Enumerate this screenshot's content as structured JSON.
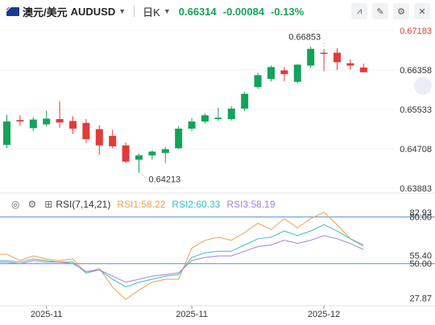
{
  "header": {
    "symbol": "澳元/美元",
    "code": "AUDUSD",
    "period": "日K",
    "price": "0.66314",
    "change": "-0.00084",
    "change_pct": "-0.13%",
    "tools": [
      "chart-type-icon",
      "draw-icon",
      "settings-icon",
      "close-icon"
    ]
  },
  "indicator": {
    "title": "RSI(7,14,21)",
    "rsi1_label": "RSI1:58.22",
    "rsi2_label": "RSI2:60.33",
    "rsi3_label": "RSI3:58.19"
  },
  "colors": {
    "up": "#13a35b",
    "down": "#e23a3a",
    "rsi1": "#f0a050",
    "rsi2": "#3bbfc0",
    "rsi3": "#a382d8",
    "ref": "#4a90d9"
  },
  "chart_data": [
    {
      "type": "candlestick",
      "ylim": [
        0.63883,
        0.67183
      ],
      "yticks": [
        "0.67183",
        "0.66358",
        "0.65533",
        "0.64708",
        "0.63883"
      ],
      "top_tick_highlight": "0.67183",
      "annotations": [
        {
          "text": "0.66853",
          "value": 0.66853,
          "index": 24
        },
        {
          "text": "0.64213",
          "value": 0.64213,
          "index": 10
        }
      ],
      "candles": [
        {
          "o": 0.6479,
          "h": 0.6542,
          "l": 0.6472,
          "c": 0.6528
        },
        {
          "o": 0.6531,
          "h": 0.6541,
          "l": 0.6519,
          "c": 0.6528
        },
        {
          "o": 0.6514,
          "h": 0.6537,
          "l": 0.6508,
          "c": 0.6532
        },
        {
          "o": 0.6522,
          "h": 0.6551,
          "l": 0.6518,
          "c": 0.6534
        },
        {
          "o": 0.6533,
          "h": 0.657,
          "l": 0.6515,
          "c": 0.6526
        },
        {
          "o": 0.6529,
          "h": 0.6539,
          "l": 0.6502,
          "c": 0.6513
        },
        {
          "o": 0.6525,
          "h": 0.6533,
          "l": 0.6483,
          "c": 0.6491
        },
        {
          "o": 0.6512,
          "h": 0.652,
          "l": 0.6458,
          "c": 0.6478
        },
        {
          "o": 0.6498,
          "h": 0.6511,
          "l": 0.6472,
          "c": 0.6476
        },
        {
          "o": 0.6478,
          "h": 0.6484,
          "l": 0.6441,
          "c": 0.6444
        },
        {
          "o": 0.6448,
          "h": 0.6461,
          "l": 0.6421,
          "c": 0.6457
        },
        {
          "o": 0.6457,
          "h": 0.6468,
          "l": 0.6448,
          "c": 0.6465
        },
        {
          "o": 0.6462,
          "h": 0.6474,
          "l": 0.6441,
          "c": 0.647
        },
        {
          "o": 0.6472,
          "h": 0.6518,
          "l": 0.647,
          "c": 0.6513
        },
        {
          "o": 0.6513,
          "h": 0.6535,
          "l": 0.6508,
          "c": 0.6528
        },
        {
          "o": 0.6528,
          "h": 0.6545,
          "l": 0.6524,
          "c": 0.6541
        },
        {
          "o": 0.6533,
          "h": 0.6557,
          "l": 0.6529,
          "c": 0.6536
        },
        {
          "o": 0.6533,
          "h": 0.656,
          "l": 0.653,
          "c": 0.6555
        },
        {
          "o": 0.6555,
          "h": 0.659,
          "l": 0.655,
          "c": 0.6586
        },
        {
          "o": 0.66,
          "h": 0.663,
          "l": 0.6596,
          "c": 0.6625
        },
        {
          "o": 0.6617,
          "h": 0.6645,
          "l": 0.6612,
          "c": 0.6642
        },
        {
          "o": 0.6635,
          "h": 0.6642,
          "l": 0.6612,
          "c": 0.6627
        },
        {
          "o": 0.6611,
          "h": 0.6648,
          "l": 0.6608,
          "c": 0.6647
        },
        {
          "o": 0.6645,
          "h": 0.6685,
          "l": 0.664,
          "c": 0.668
        },
        {
          "o": 0.6672,
          "h": 0.668,
          "l": 0.6633,
          "c": 0.667
        },
        {
          "o": 0.6672,
          "h": 0.6681,
          "l": 0.6636,
          "c": 0.6652
        },
        {
          "o": 0.665,
          "h": 0.6658,
          "l": 0.6636,
          "c": 0.6645
        },
        {
          "o": 0.6641,
          "h": 0.6649,
          "l": 0.6632,
          "c": 0.6631
        }
      ]
    },
    {
      "type": "line",
      "title": "RSI(7,14,21)",
      "ylim": [
        24,
        84
      ],
      "yticks": [
        "82.93",
        "55.40",
        "27.87"
      ],
      "ref_lines": [
        {
          "value": 80.0,
          "label": "80.00"
        },
        {
          "value": 50.0,
          "label": "50.00"
        }
      ],
      "x_labels": [
        {
          "text": "2025-11",
          "index": 3
        },
        {
          "text": "2025-11",
          "index": 14
        },
        {
          "text": "2025-12",
          "index": 24
        }
      ],
      "series": [
        {
          "name": "RSI1",
          "values": [
            56,
            52,
            55,
            53,
            52,
            53,
            44,
            47,
            35,
            27,
            33,
            38,
            40,
            40,
            60,
            65,
            67,
            65,
            70,
            76,
            72,
            79,
            73,
            79,
            83,
            75,
            66,
            61
          ]
        },
        {
          "name": "RSI2",
          "values": [
            52,
            51,
            53,
            52,
            51,
            51,
            44,
            46,
            40,
            35,
            38,
            40,
            42,
            43,
            54,
            57,
            58,
            58,
            62,
            66,
            67,
            71,
            68,
            71,
            75,
            71,
            66,
            62
          ]
        },
        {
          "name": "RSI3",
          "values": [
            51,
            50,
            52,
            51,
            51,
            50,
            45,
            46,
            42,
            38,
            40,
            42,
            43,
            44,
            52,
            54,
            55,
            55,
            58,
            61,
            62,
            65,
            63,
            65,
            68,
            66,
            63,
            59
          ]
        }
      ]
    }
  ]
}
